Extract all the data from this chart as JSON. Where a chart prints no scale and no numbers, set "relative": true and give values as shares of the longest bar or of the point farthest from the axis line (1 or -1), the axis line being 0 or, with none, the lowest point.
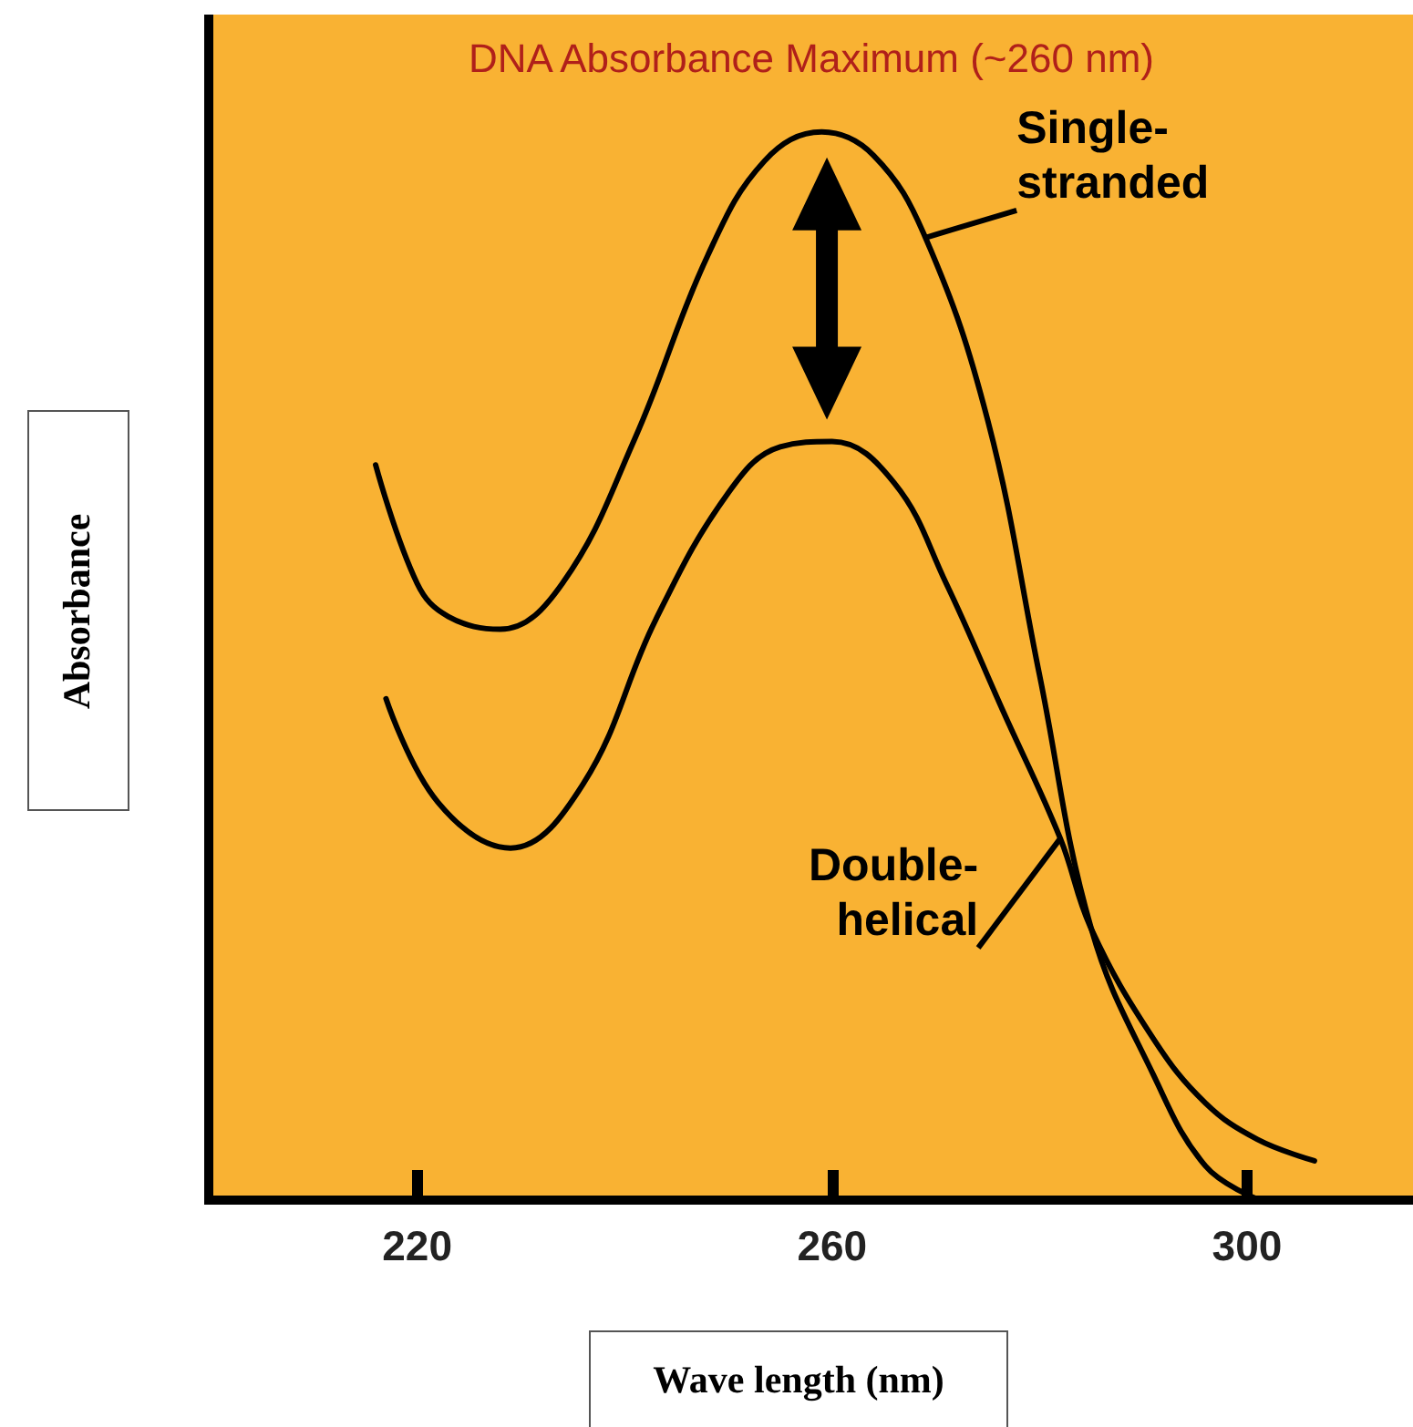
{
  "chart_data": {
    "type": "line",
    "title": "DNA Absorbance Maximum (~260 nm)",
    "xlabel": "Wave length (nm)",
    "ylabel": "Absorbance",
    "relative": true,
    "xlim": [
      200,
      316
    ],
    "xticks": [
      220,
      260,
      300
    ],
    "grid": false,
    "legend": false,
    "marker": "none",
    "line_style": "solid",
    "series": [
      {
        "name": "Single-stranded",
        "color": "#000000",
        "x": [
          216,
          220,
          223,
          228,
          234,
          241,
          248,
          253.5,
          259,
          264,
          269,
          275,
          280,
          285,
          291,
          296,
          301
        ],
        "values": [
          0.688,
          0.577,
          0.546,
          0.534,
          0.577,
          0.713,
          0.884,
          0.973,
          1.0,
          0.978,
          0.901,
          0.73,
          0.491,
          0.253,
          0.116,
          0.031,
          0.0
        ]
      },
      {
        "name": "Double-helical",
        "color": "#000000",
        "x": [
          217,
          222,
          229,
          236,
          243,
          250,
          255,
          260,
          266,
          271,
          276.5,
          282,
          285,
          291,
          296,
          301,
          306.5
        ],
        "values": [
          0.469,
          0.372,
          0.329,
          0.389,
          0.543,
          0.662,
          0.705,
          0.71,
          0.671,
          0.577,
          0.457,
          0.338,
          0.253,
          0.15,
          0.09,
          0.056,
          0.036
        ]
      }
    ]
  }
}
